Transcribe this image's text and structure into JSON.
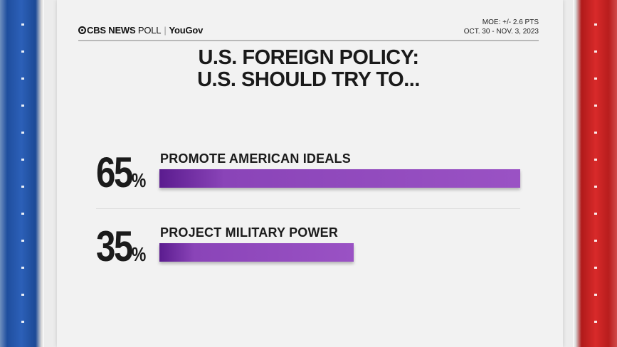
{
  "header": {
    "brand_cbs": "CBS NEWS",
    "brand_poll": "POLL",
    "brand_yougov": "YouGov",
    "moe": "MOE: +/- 2.6 PTS",
    "dates": "OCT. 30 - NOV. 3, 2023"
  },
  "title_line1": "U.S. FOREIGN POLICY:",
  "title_line2": "U.S. SHOULD TRY TO...",
  "colors": {
    "bar": "#8a44b8",
    "left_stripe": "#2c60b8",
    "right_stripe": "#d82a2a"
  },
  "chart_data": {
    "type": "bar",
    "title": "U.S. FOREIGN POLICY: U.S. SHOULD TRY TO...",
    "categories": [
      "PROMOTE AMERICAN IDEALS",
      "PROJECT MILITARY POWER"
    ],
    "values": [
      65,
      35
    ],
    "value_labels": [
      "65",
      "35"
    ],
    "unit": "%",
    "xlim": [
      0,
      65
    ],
    "grid": false
  }
}
